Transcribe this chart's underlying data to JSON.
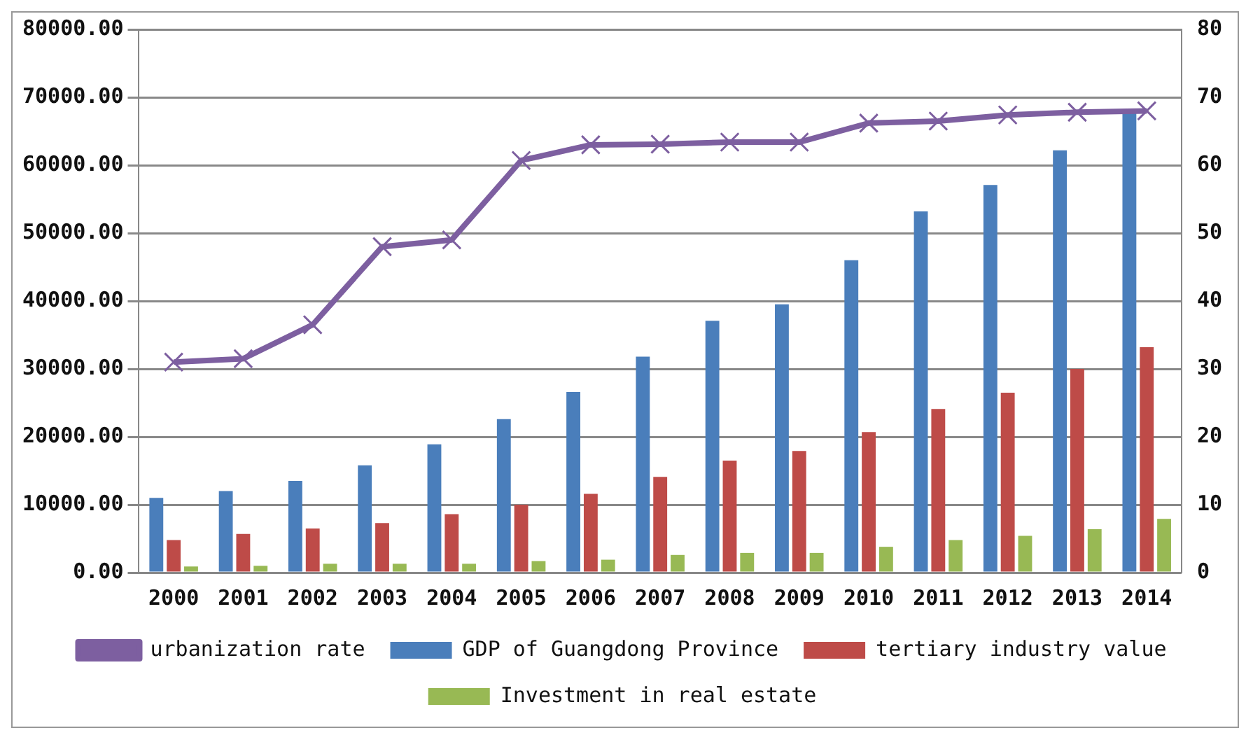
{
  "chart_data": {
    "type": "bar",
    "categories": [
      "2000",
      "2001",
      "2002",
      "2003",
      "2004",
      "2005",
      "2006",
      "2007",
      "2008",
      "2009",
      "2010",
      "2011",
      "2012",
      "2013",
      "2014"
    ],
    "series": [
      {
        "name": "GDP of Guangdong Province",
        "color": "#4a7ebb",
        "values": [
          11000,
          12000,
          13500,
          15800,
          18900,
          22600,
          26600,
          31800,
          37100,
          39500,
          46000,
          53200,
          57100,
          62200,
          67800
        ]
      },
      {
        "name": "tertiary industry value",
        "color": "#be4b48",
        "values": [
          4800,
          5700,
          6500,
          7300,
          8600,
          10000,
          11600,
          14100,
          16500,
          17900,
          20700,
          24100,
          26500,
          30000,
          33200
        ]
      },
      {
        "name": "Investment in real estate",
        "color": "#98b954",
        "values": [
          900,
          1000,
          1300,
          1300,
          1300,
          1700,
          1900,
          2600,
          2900,
          2900,
          3800,
          4800,
          5400,
          6400,
          7900
        ]
      },
      {
        "name": "urbanization rate",
        "type": "line",
        "axis": "y2",
        "color": "#7d5fa0",
        "marker": "cross",
        "values": [
          31,
          31.5,
          36.5,
          48,
          49,
          60.7,
          63,
          63.1,
          63.4,
          63.4,
          66.2,
          66.5,
          67.4,
          67.8,
          68
        ]
      }
    ],
    "ylim": [
      0,
      80000
    ],
    "yticks": [
      {
        "value": 0,
        "label": "0.00"
      },
      {
        "value": 10000,
        "label": "10000.00"
      },
      {
        "value": 20000,
        "label": "20000.00"
      },
      {
        "value": 30000,
        "label": "30000.00"
      },
      {
        "value": 40000,
        "label": "40000.00"
      },
      {
        "value": 50000,
        "label": "50000.00"
      },
      {
        "value": 60000,
        "label": "60000.00"
      },
      {
        "value": 70000,
        "label": "70000.00"
      },
      {
        "value": 80000,
        "label": "80000.00"
      }
    ],
    "y2lim": [
      0,
      80
    ],
    "y2ticks": [
      0,
      10,
      20,
      30,
      40,
      50,
      60,
      70,
      80
    ],
    "grid": "y",
    "legend": "bottom"
  }
}
